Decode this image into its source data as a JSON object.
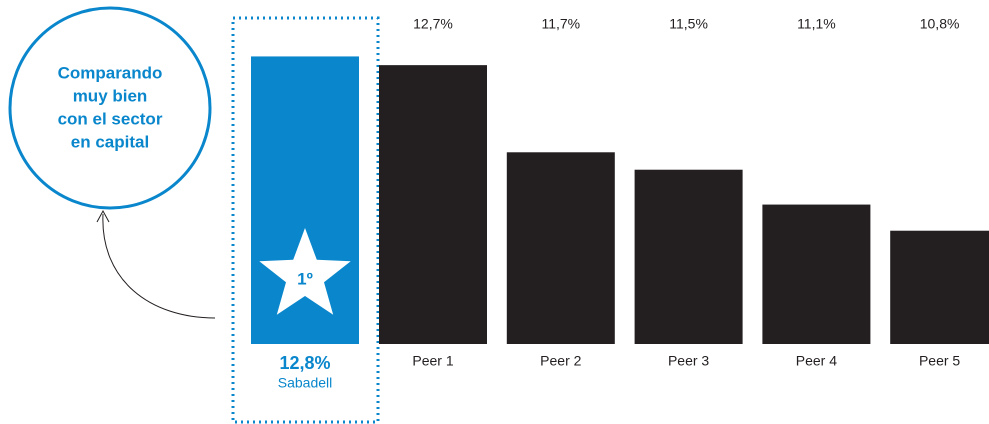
{
  "chart_data": {
    "type": "bar",
    "annotation": [
      "Comparando",
      "muy bien",
      "con el sector",
      "en capital"
    ],
    "rank_label": "1º",
    "categories": [
      "Sabadell",
      "Peer 1",
      "Peer 2",
      "Peer 3",
      "Peer 4",
      "Peer 5"
    ],
    "values": [
      12.8,
      12.7,
      11.7,
      11.5,
      11.1,
      10.8
    ],
    "value_labels": [
      "12,8%",
      "12,7%",
      "11,7%",
      "11,5%",
      "11,1%",
      "10,8%"
    ],
    "colors": [
      "#0a87cc",
      "#231f20",
      "#231f20",
      "#231f20",
      "#231f20",
      "#231f20"
    ],
    "ylim": [
      9.5,
      13
    ]
  }
}
